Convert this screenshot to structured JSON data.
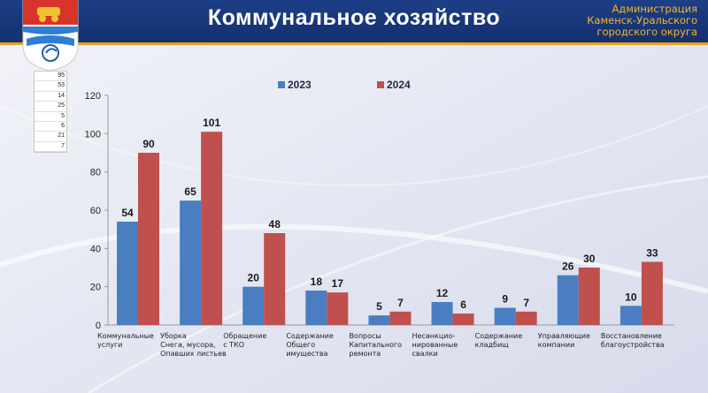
{
  "header": {
    "title": "Коммунальное хозяйство",
    "org_lines": [
      "Администрация",
      "Каменск-Уральского",
      "городского округа"
    ],
    "emblem_icon": "city-coat-of-arms-icon"
  },
  "mini_table": {
    "values": [
      "95",
      "53",
      "14",
      "25",
      "5",
      "6",
      "21",
      "7"
    ]
  },
  "colors": {
    "series_2023": "#4a7ec0",
    "series_2024": "#c0504d",
    "header": "#1b3b82",
    "accent": "#e8a21a"
  },
  "chart_data": {
    "type": "bar",
    "title": "",
    "xlabel": "",
    "ylabel": "",
    "ylim": [
      0,
      120
    ],
    "yticks": [
      0,
      20,
      40,
      60,
      80,
      100,
      120
    ],
    "grid": false,
    "legend": "top-center",
    "categories": [
      [
        "Коммунальные",
        "услуги"
      ],
      [
        "Уборка",
        "Снега, мусора,",
        "Опавших листьев"
      ],
      [
        "Обращение",
        "с ТКО"
      ],
      [
        "Содержание",
        "Общего",
        "имущества"
      ],
      [
        "Вопросы",
        "Капитального",
        "ремонта"
      ],
      [
        "Несанкцио-",
        "нированные",
        "свалки"
      ],
      [
        "Содержание",
        "кладбищ"
      ],
      [
        "Управляющие",
        "компании"
      ],
      [
        "Восстановление",
        "благоустройства"
      ]
    ],
    "series": [
      {
        "name": "2023",
        "values": [
          54,
          65,
          20,
          18,
          5,
          12,
          9,
          26,
          10
        ]
      },
      {
        "name": "2024",
        "values": [
          90,
          101,
          48,
          17,
          7,
          6,
          7,
          30,
          33
        ]
      }
    ]
  }
}
